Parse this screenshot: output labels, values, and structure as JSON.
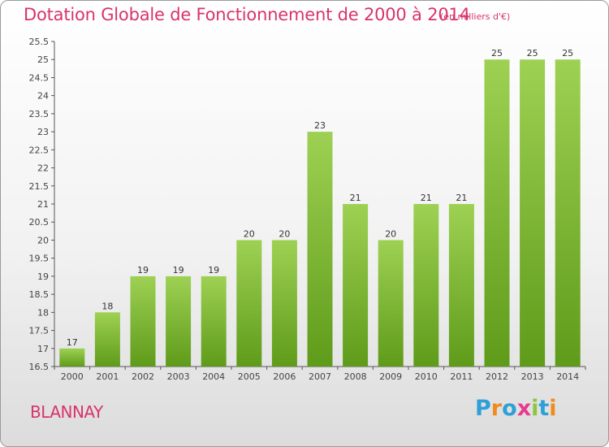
{
  "header": {
    "title": "Dotation Globale de Fonctionnement de 2000 à 2014",
    "subtitle": "(en milliers d'€)"
  },
  "commune": "BLANNAY",
  "logo": {
    "text": "Proxiti",
    "letters": [
      {
        "ch": "P",
        "color": "#2f9fd8"
      },
      {
        "ch": "r",
        "color": "#f08a1c"
      },
      {
        "ch": "o",
        "color": "#2f9fd8"
      },
      {
        "ch": "x",
        "color": "#e83a8e"
      },
      {
        "ch": "i",
        "color": "#8cc63f"
      },
      {
        "ch": "t",
        "color": "#2f9fd8"
      },
      {
        "ch": "i",
        "color": "#f08a1c"
      }
    ]
  },
  "colors": {
    "bar_top": "#9ed153",
    "bar_bottom": "#5f9b1a",
    "accent": "#d8346a"
  },
  "chart_data": {
    "type": "bar",
    "categories": [
      "2000",
      "2001",
      "2002",
      "2003",
      "2004",
      "2005",
      "2006",
      "2007",
      "2008",
      "2009",
      "2010",
      "2011",
      "2012",
      "2013",
      "2014"
    ],
    "values": [
      17,
      18,
      19,
      19,
      19,
      20,
      20,
      23,
      21,
      20,
      21,
      21,
      25,
      25,
      25
    ],
    "ylim": [
      16.5,
      25.5
    ],
    "yticks": [
      "16.5",
      "17",
      "17.5",
      "18",
      "18.5",
      "19",
      "19.5",
      "20",
      "20.5",
      "21",
      "21.5",
      "22",
      "22.5",
      "23",
      "23.5",
      "24",
      "24.5",
      "25",
      "25.5"
    ],
    "grid": false,
    "xlabel": "",
    "ylabel": ""
  }
}
